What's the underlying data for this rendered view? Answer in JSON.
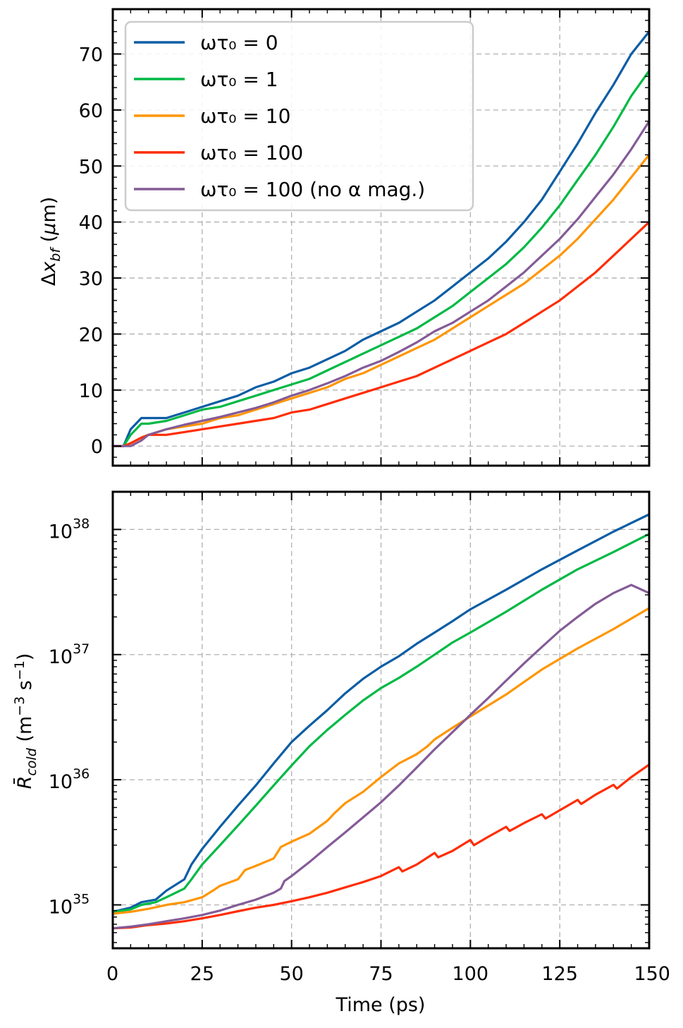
{
  "chart_data": [
    {
      "type": "line",
      "panel": "top",
      "xlabel": "",
      "ylabel": "Δx_bf (μm)",
      "xlim": [
        0,
        150
      ],
      "ylim": [
        -3.5,
        78
      ],
      "xticks": [
        "0",
        "25",
        "50",
        "75",
        "100",
        "125",
        "150"
      ],
      "yticks": [
        "0",
        "10",
        "20",
        "30",
        "40",
        "50",
        "60",
        "70"
      ],
      "grid": true,
      "legend": {
        "placement": "top-left"
      },
      "series": [
        {
          "name": "ωτ₀ = 0",
          "color": "#0C5DA5",
          "x": [
            0,
            3,
            5,
            8,
            10,
            15,
            20,
            25,
            30,
            35,
            40,
            45,
            50,
            55,
            60,
            65,
            70,
            75,
            80,
            85,
            90,
            95,
            100,
            105,
            110,
            115,
            120,
            125,
            130,
            135,
            140,
            145,
            150
          ],
          "y": [
            0,
            0,
            3,
            5,
            5,
            5,
            6,
            7,
            8,
            9,
            10.5,
            11.5,
            13,
            14,
            15.5,
            17,
            19,
            20.5,
            22,
            24,
            26,
            28.5,
            31,
            33.5,
            36.5,
            40,
            44,
            49,
            54,
            59.5,
            64.5,
            70,
            74
          ]
        },
        {
          "name": "ωτ₀ = 1",
          "color": "#00B945",
          "x": [
            0,
            3,
            5,
            8,
            10,
            15,
            20,
            25,
            30,
            35,
            40,
            45,
            50,
            55,
            60,
            65,
            70,
            75,
            80,
            85,
            90,
            95,
            100,
            105,
            110,
            115,
            120,
            125,
            130,
            135,
            140,
            145,
            150
          ],
          "y": [
            0,
            0,
            2,
            4,
            4,
            4.5,
            5.5,
            6.5,
            7,
            8,
            9,
            10,
            11,
            12,
            13.5,
            15,
            16.5,
            18,
            19.5,
            21,
            23,
            25,
            27.5,
            30,
            32.5,
            35.5,
            39,
            43,
            47.5,
            52,
            57,
            62.5,
            67
          ]
        },
        {
          "name": "ωτ₀ = 10",
          "color": "#FF9500",
          "x": [
            0,
            3,
            5,
            8,
            10,
            15,
            20,
            25,
            30,
            35,
            40,
            45,
            50,
            55,
            60,
            65,
            70,
            75,
            80,
            85,
            90,
            95,
            100,
            105,
            110,
            115,
            120,
            125,
            130,
            135,
            140,
            145,
            150
          ],
          "y": [
            0,
            0,
            0.5,
            1.5,
            2,
            3,
            3.5,
            4,
            5,
            5.5,
            6.5,
            7.5,
            8.5,
            9.5,
            10.5,
            12,
            13,
            14.5,
            16,
            17.5,
            19,
            21,
            23,
            25,
            27,
            29,
            31.5,
            34,
            37,
            40.5,
            44,
            48,
            52
          ]
        },
        {
          "name": "ωτ₀ = 100",
          "color": "#FF2C00",
          "x": [
            0,
            3,
            5,
            8,
            10,
            15,
            20,
            25,
            30,
            35,
            40,
            45,
            50,
            55,
            60,
            65,
            70,
            75,
            80,
            85,
            90,
            95,
            100,
            105,
            110,
            115,
            120,
            125,
            130,
            135,
            140,
            145,
            150
          ],
          "y": [
            0,
            0,
            0.5,
            1.5,
            2,
            2,
            2.5,
            3,
            3.5,
            4,
            4.5,
            5,
            6,
            6.5,
            7.5,
            8.5,
            9.5,
            10.5,
            11.5,
            12.5,
            14,
            15.5,
            17,
            18.5,
            20,
            22,
            24,
            26,
            28.5,
            31,
            34,
            37,
            40
          ]
        },
        {
          "name": "ωτ₀ = 100 (no α mag.)",
          "color": "#845B97",
          "x": [
            0,
            3,
            5,
            8,
            10,
            15,
            20,
            25,
            30,
            35,
            40,
            45,
            50,
            55,
            60,
            65,
            70,
            75,
            80,
            85,
            90,
            95,
            100,
            105,
            110,
            115,
            120,
            125,
            130,
            135,
            140,
            145,
            150
          ],
          "y": [
            0,
            0,
            0,
            1,
            2,
            3,
            3.8,
            4.5,
            5.2,
            6,
            6.8,
            7.8,
            9,
            10,
            11.2,
            12.5,
            14,
            15.2,
            16.8,
            18.5,
            20.5,
            22,
            24,
            26,
            28.5,
            31,
            34,
            37,
            40.5,
            44.5,
            48.5,
            53,
            58
          ]
        }
      ]
    },
    {
      "type": "line",
      "panel": "bottom",
      "xlabel": "Time (ps)",
      "ylabel": "R̄_cold (m⁻³ s⁻¹)",
      "yscale": "log",
      "xlim": [
        0,
        150
      ],
      "ylim": [
        4.5e+34,
        2e+38
      ],
      "xticks": [
        "0",
        "25",
        "50",
        "75",
        "100",
        "125",
        "150"
      ],
      "yticks": [
        "10",
        "10",
        "10",
        "10"
      ],
      "ytick_exponents": [
        "35",
        "36",
        "37",
        "38"
      ],
      "grid": true,
      "series": [
        {
          "name": "ωτ₀ = 0",
          "color": "#0C5DA5",
          "x": [
            0,
            5,
            8,
            12,
            15,
            20,
            22,
            25,
            30,
            35,
            40,
            45,
            50,
            55,
            60,
            65,
            70,
            75,
            80,
            85,
            90,
            95,
            100,
            110,
            120,
            130,
            140,
            150
          ],
          "y": [
            8.8e+34,
            9.5e+34,
            1.05e+35,
            1.1e+35,
            1.3e+35,
            1.6e+35,
            2.1e+35,
            2.8e+35,
            4.2e+35,
            6.2e+35,
            9e+35,
            1.35e+36,
            2e+36,
            2.7e+36,
            3.6e+36,
            4.9e+36,
            6.4e+36,
            8e+36,
            9.7e+36,
            1.22e+37,
            1.5e+37,
            1.85e+37,
            2.3e+37,
            3.3e+37,
            4.8e+37,
            6.8e+37,
            9.6e+37,
            1.32e+38
          ]
        },
        {
          "name": "ωτ₀ = 1",
          "color": "#00B945",
          "x": [
            0,
            5,
            8,
            12,
            15,
            20,
            22,
            25,
            30,
            35,
            40,
            45,
            50,
            55,
            60,
            65,
            70,
            75,
            80,
            85,
            90,
            95,
            100,
            110,
            120,
            130,
            140,
            150
          ],
          "y": [
            8.8e+34,
            9.2e+34,
            1e+35,
            1.05e+35,
            1.15e+35,
            1.35e+35,
            1.6e+35,
            2.1e+35,
            3e+35,
            4.3e+35,
            6.2e+35,
            9e+35,
            1.3e+36,
            1.85e+36,
            2.5e+36,
            3.3e+36,
            4.3e+36,
            5.4e+36,
            6.5e+36,
            8e+36,
            1e+37,
            1.25e+37,
            1.5e+37,
            2.2e+37,
            3.3e+37,
            4.8e+37,
            6.6e+37,
            9.2e+37
          ]
        },
        {
          "name": "ωτ₀ = 10",
          "color": "#FF9500",
          "x": [
            0,
            5,
            10,
            15,
            20,
            25,
            28,
            30,
            35,
            37,
            40,
            45,
            47,
            50,
            55,
            60,
            62,
            65,
            70,
            75,
            80,
            85,
            88,
            90,
            95,
            100,
            110,
            120,
            130,
            140,
            150
          ],
          "y": [
            8.5e+34,
            8.8e+34,
            9.3e+34,
            1e+35,
            1.05e+35,
            1.15e+35,
            1.3e+35,
            1.42e+35,
            1.6e+35,
            1.9e+35,
            2.05e+35,
            2.35e+35,
            2.9e+35,
            3.2e+35,
            3.7e+35,
            4.7e+35,
            5.4e+35,
            6.5e+35,
            8e+35,
            1.05e+36,
            1.35e+36,
            1.6e+36,
            1.85e+36,
            2.1e+36,
            2.6e+36,
            3.2e+36,
            4.8e+36,
            7.6e+36,
            1.12e+37,
            1.6e+37,
            2.35e+37
          ]
        },
        {
          "name": "ωτ₀ = 100",
          "color": "#FF2C00",
          "x": [
            0,
            5,
            10,
            15,
            20,
            25,
            30,
            35,
            40,
            45,
            50,
            55,
            60,
            65,
            70,
            75,
            80,
            81,
            85,
            90,
            91,
            95,
            100,
            101,
            105,
            110,
            111,
            115,
            120,
            121,
            125,
            130,
            131,
            135,
            140,
            141,
            145,
            150
          ],
          "y": [
            6.5e+34,
            6.6e+34,
            6.9e+34,
            7.1e+34,
            7.4e+34,
            7.8e+34,
            8.3e+34,
            8.9e+34,
            9.5e+34,
            1e+35,
            1.07e+35,
            1.15e+35,
            1.25e+35,
            1.38e+35,
            1.52e+35,
            1.7e+35,
            2e+35,
            1.85e+35,
            2.1e+35,
            2.6e+35,
            2.4e+35,
            2.7e+35,
            3.3e+35,
            3e+35,
            3.5e+35,
            4.2e+35,
            3.9e+35,
            4.5e+35,
            5.3e+35,
            4.9e+35,
            5.7e+35,
            6.9e+35,
            6.4e+35,
            7.6e+35,
            9.1e+35,
            8.5e+35,
            1.05e+36,
            1.32e+36
          ]
        },
        {
          "name": "ωτ₀ = 100 (no α mag.)",
          "color": "#845B97",
          "x": [
            0,
            5,
            10,
            15,
            20,
            25,
            30,
            35,
            40,
            45,
            47,
            48,
            50,
            55,
            60,
            65,
            70,
            75,
            80,
            85,
            90,
            95,
            100,
            105,
            110,
            115,
            120,
            125,
            130,
            135,
            140,
            145,
            150
          ],
          "y": [
            6.5e+34,
            6.7e+34,
            7e+34,
            7.4e+34,
            7.8e+34,
            8.3e+34,
            9e+34,
            1e+35,
            1.1e+35,
            1.25e+35,
            1.35e+35,
            1.55e+35,
            1.7e+35,
            2.2e+35,
            2.9e+35,
            3.8e+35,
            5e+35,
            6.6e+35,
            9e+35,
            1.25e+36,
            1.75e+36,
            2.4e+36,
            3.3e+36,
            4.5e+36,
            6.2e+36,
            8.5e+36,
            1.15e+37,
            1.55e+37,
            2e+37,
            2.55e+37,
            3.1e+37,
            3.6e+37,
            3.1e+37
          ]
        }
      ]
    }
  ]
}
